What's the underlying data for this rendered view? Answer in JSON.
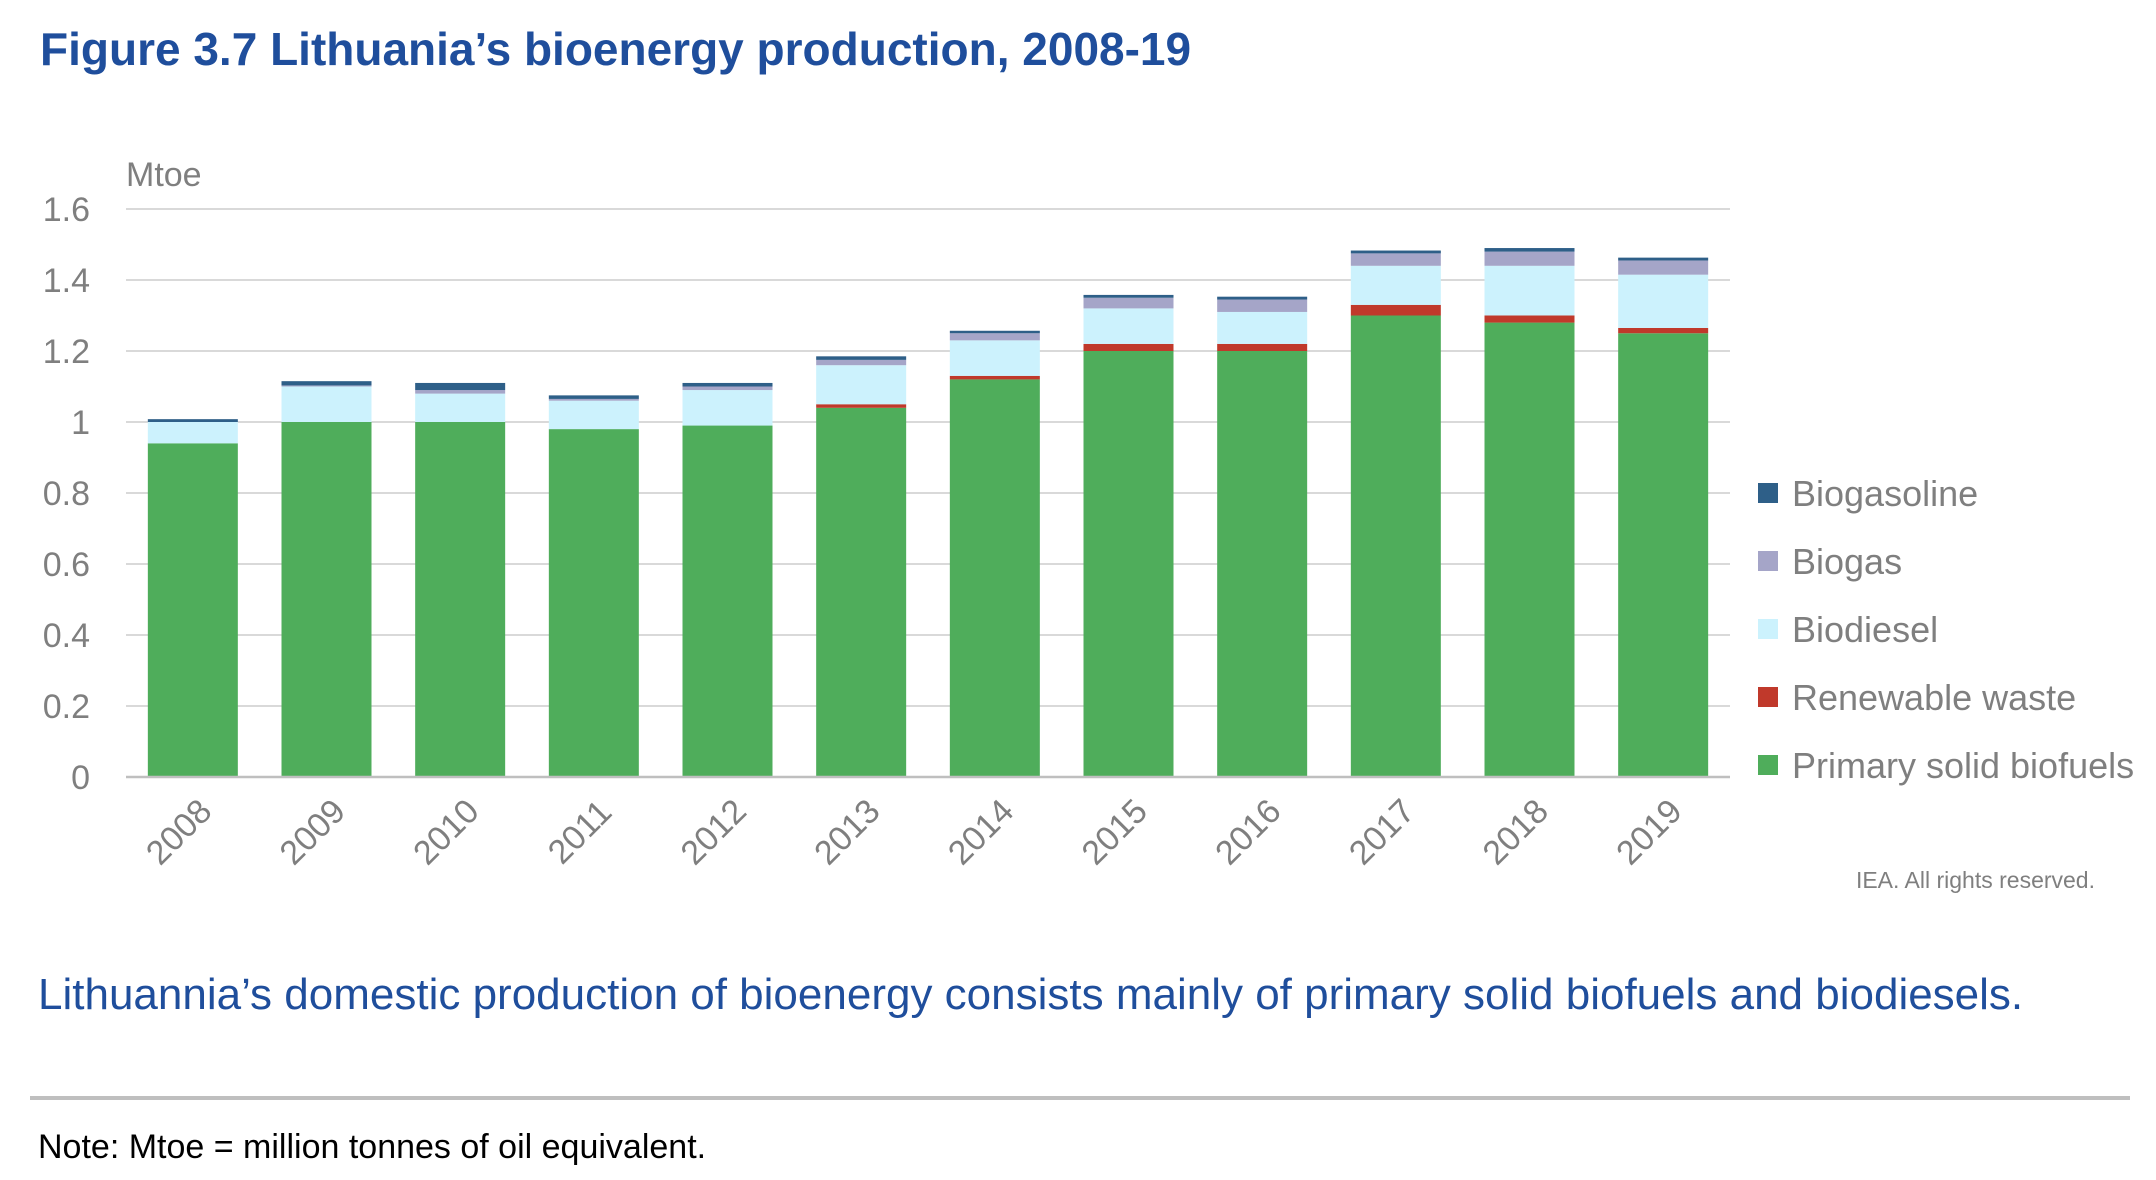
{
  "figure": {
    "title": "Figure 3.7 Lithuania’s bioenergy production, 2008-19",
    "subtitle": "Lithuannia’s domestic production of bioenergy consists mainly of primary solid biofuels and biodiesels.",
    "note": "Note: Mtoe = million tonnes of oil equivalent.",
    "credit": "IEA. All rights reserved."
  },
  "chart_data": {
    "type": "bar",
    "stacked": true,
    "unit_label": "Mtoe",
    "ylim": [
      0,
      1.6
    ],
    "yticks": [
      "0",
      "0.2",
      "0.4",
      "0.6",
      "0.8",
      "1",
      "1.2",
      "1.4",
      "1.6"
    ],
    "grid": true,
    "legend_position": "right",
    "categories": [
      "2008",
      "2009",
      "2010",
      "2011",
      "2012",
      "2013",
      "2014",
      "2015",
      "2016",
      "2017",
      "2018",
      "2019"
    ],
    "series": [
      {
        "name": "Primary solid biofuels",
        "color": "#4fad5b",
        "values": [
          0.94,
          1.0,
          1.0,
          0.98,
          0.99,
          1.04,
          1.12,
          1.2,
          1.2,
          1.3,
          1.28,
          1.25
        ]
      },
      {
        "name": "Renewable waste",
        "color": "#c0392b",
        "values": [
          0.0,
          0.0,
          0.0,
          0.0,
          0.0,
          0.01,
          0.01,
          0.02,
          0.02,
          0.03,
          0.02,
          0.015
        ]
      },
      {
        "name": "Biodiesel",
        "color": "#ccf2fd",
        "values": [
          0.06,
          0.1,
          0.08,
          0.08,
          0.1,
          0.11,
          0.1,
          0.1,
          0.09,
          0.11,
          0.14,
          0.15
        ]
      },
      {
        "name": "Biogas",
        "color": "#a5a5c8",
        "values": [
          0.0,
          0.003,
          0.01,
          0.005,
          0.01,
          0.015,
          0.02,
          0.03,
          0.035,
          0.035,
          0.04,
          0.04
        ]
      },
      {
        "name": "Biogasoline",
        "color": "#2e5f88",
        "values": [
          0.008,
          0.012,
          0.02,
          0.01,
          0.01,
          0.01,
          0.007,
          0.008,
          0.008,
          0.008,
          0.01,
          0.008
        ]
      }
    ],
    "legend_order": [
      "Biogasoline",
      "Biogas",
      "Biodiesel",
      "Renewable waste",
      "Primary solid biofuels"
    ]
  }
}
